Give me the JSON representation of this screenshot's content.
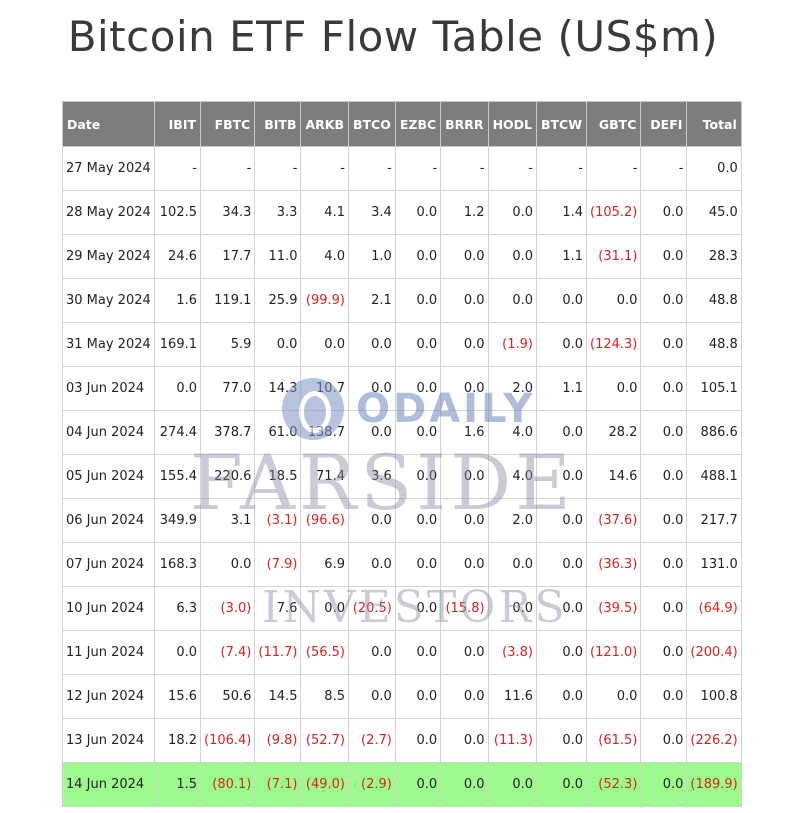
{
  "title": "Bitcoin ETF Flow Table (US$m)",
  "watermarks": {
    "odaily": "ODAILY",
    "farside": "FARSIDE",
    "investors": "INVESTORS"
  },
  "colors": {
    "header_bg": "#7d7d7d",
    "negative": "#e02020",
    "highlight_row": "#9cfb8c"
  },
  "table": {
    "columns": [
      "Date",
      "IBIT",
      "FBTC",
      "BITB",
      "ARKB",
      "BTCO",
      "EZBC",
      "BRRR",
      "HODL",
      "BTCW",
      "GBTC",
      "DEFI",
      "Total"
    ],
    "rows": [
      [
        "27 May 2024",
        "-",
        "-",
        "-",
        "-",
        "-",
        "-",
        "-",
        "-",
        "-",
        "-",
        "-",
        "0.0"
      ],
      [
        "28 May 2024",
        "102.5",
        "34.3",
        "3.3",
        "4.1",
        "3.4",
        "0.0",
        "1.2",
        "0.0",
        "1.4",
        "(105.2)",
        "0.0",
        "45.0"
      ],
      [
        "29 May 2024",
        "24.6",
        "17.7",
        "11.0",
        "4.0",
        "1.0",
        "0.0",
        "0.0",
        "0.0",
        "1.1",
        "(31.1)",
        "0.0",
        "28.3"
      ],
      [
        "30 May 2024",
        "1.6",
        "119.1",
        "25.9",
        "(99.9)",
        "2.1",
        "0.0",
        "0.0",
        "0.0",
        "0.0",
        "0.0",
        "0.0",
        "48.8"
      ],
      [
        "31 May 2024",
        "169.1",
        "5.9",
        "0.0",
        "0.0",
        "0.0",
        "0.0",
        "0.0",
        "(1.9)",
        "0.0",
        "(124.3)",
        "0.0",
        "48.8"
      ],
      [
        "03 Jun 2024",
        "0.0",
        "77.0",
        "14.3",
        "10.7",
        "0.0",
        "0.0",
        "0.0",
        "2.0",
        "1.1",
        "0.0",
        "0.0",
        "105.1"
      ],
      [
        "04 Jun 2024",
        "274.4",
        "378.7",
        "61.0",
        "138.7",
        "0.0",
        "0.0",
        "1.6",
        "4.0",
        "0.0",
        "28.2",
        "0.0",
        "886.6"
      ],
      [
        "05 Jun 2024",
        "155.4",
        "220.6",
        "18.5",
        "71.4",
        "3.6",
        "0.0",
        "0.0",
        "4.0",
        "0.0",
        "14.6",
        "0.0",
        "488.1"
      ],
      [
        "06 Jun 2024",
        "349.9",
        "3.1",
        "(3.1)",
        "(96.6)",
        "0.0",
        "0.0",
        "0.0",
        "2.0",
        "0.0",
        "(37.6)",
        "0.0",
        "217.7"
      ],
      [
        "07 Jun 2024",
        "168.3",
        "0.0",
        "(7.9)",
        "6.9",
        "0.0",
        "0.0",
        "0.0",
        "0.0",
        "0.0",
        "(36.3)",
        "0.0",
        "131.0"
      ],
      [
        "10 Jun 2024",
        "6.3",
        "(3.0)",
        "7.6",
        "0.0",
        "(20.5)",
        "0.0",
        "(15.8)",
        "0.0",
        "0.0",
        "(39.5)",
        "0.0",
        "(64.9)"
      ],
      [
        "11 Jun 2024",
        "0.0",
        "(7.4)",
        "(11.7)",
        "(56.5)",
        "0.0",
        "0.0",
        "0.0",
        "(3.8)",
        "0.0",
        "(121.0)",
        "0.0",
        "(200.4)"
      ],
      [
        "12 Jun 2024",
        "15.6",
        "50.6",
        "14.5",
        "8.5",
        "0.0",
        "0.0",
        "0.0",
        "11.6",
        "0.0",
        "0.0",
        "0.0",
        "100.8"
      ],
      [
        "13 Jun 2024",
        "18.2",
        "(106.4)",
        "(9.8)",
        "(52.7)",
        "(2.7)",
        "0.0",
        "0.0",
        "(11.3)",
        "0.0",
        "(61.5)",
        "0.0",
        "(226.2)"
      ],
      [
        "14 Jun 2024",
        "1.5",
        "(80.1)",
        "(7.1)",
        "(49.0)",
        "(2.9)",
        "0.0",
        "0.0",
        "0.0",
        "0.0",
        "(52.3)",
        "0.0",
        "(189.9)"
      ]
    ],
    "highlighted_row": "14 Jun 2024"
  }
}
